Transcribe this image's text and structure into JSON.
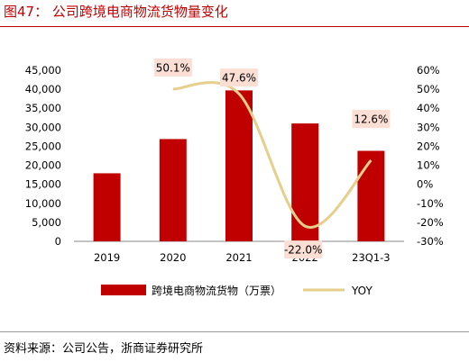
{
  "header": {
    "title": "图47：  公司跨境电商物流货物量变化"
  },
  "footer": {
    "source": "资料来源：公司公告，浙商证券研究所"
  },
  "chart_data": {
    "type": "bar",
    "categories": [
      "2019",
      "2020",
      "2021",
      "2022",
      "23Q1-3"
    ],
    "series": [
      {
        "name": "跨境电商物流货物（万票）",
        "type": "bar",
        "axis": "left",
        "values": [
          17900,
          26900,
          39700,
          31000,
          23800
        ],
        "color": "#c00000"
      },
      {
        "name": "YOY",
        "type": "line",
        "axis": "right",
        "values": [
          null,
          50.1,
          47.6,
          -22.0,
          12.6
        ],
        "color": "#e6cf8b"
      }
    ],
    "data_labels": [
      "",
      "50.1%",
      "47.6%",
      "-22.0%",
      "12.6%"
    ],
    "y_left": {
      "min": 0,
      "max": 45000,
      "step": 5000,
      "ticks": [
        "0",
        "5,000",
        "10,000",
        "15,000",
        "20,000",
        "25,000",
        "30,000",
        "35,000",
        "40,000",
        "45,000"
      ]
    },
    "y_right": {
      "min": -30,
      "max": 60,
      "step": 10,
      "ticks": [
        "-30%",
        "-20%",
        "-10%",
        "0%",
        "10%",
        "20%",
        "30%",
        "40%",
        "50%",
        "60%"
      ]
    },
    "legend": {
      "position": "bottom"
    },
    "grid": false
  }
}
